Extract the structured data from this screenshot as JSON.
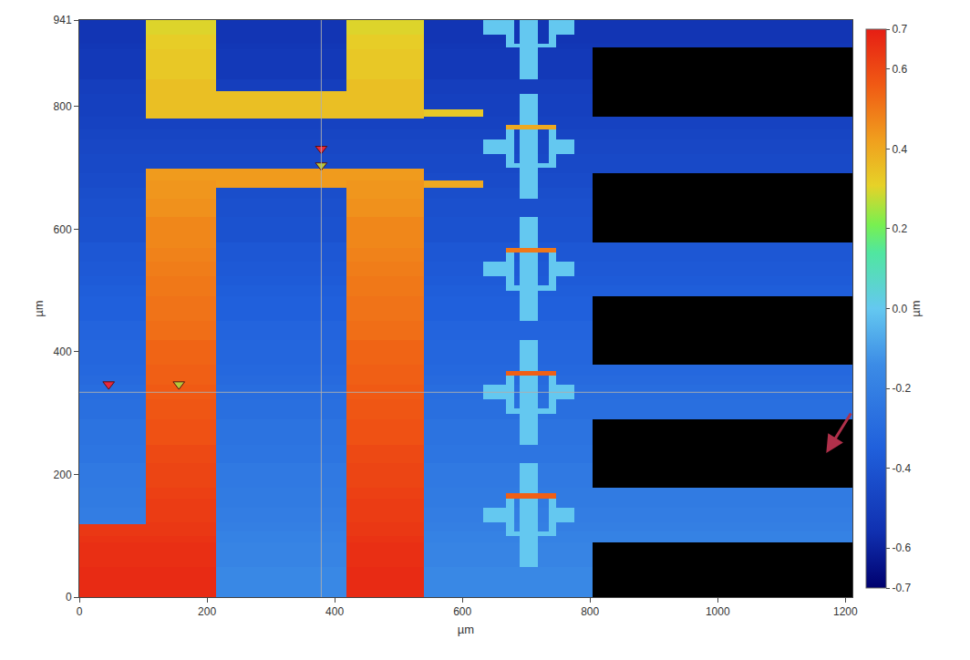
{
  "chart_data": {
    "type": "heatmap",
    "x_label": "µm",
    "y_label": "µm",
    "x": [
      0,
      104,
      214,
      419,
      540,
      633,
      669,
      681,
      690,
      719,
      735,
      747,
      776,
      804,
      1211
    ],
    "y": [
      0,
      49,
      89,
      99,
      107,
      119,
      122,
      146,
      161,
      169,
      178,
      219,
      249,
      290,
      299,
      307,
      322,
      346,
      361,
      369,
      379,
      419,
      450,
      490,
      500,
      508,
      523,
      547,
      562,
      570,
      579,
      620,
      650,
      668,
      680,
      691,
      698,
      700,
      708,
      723,
      747,
      762,
      770,
      780,
      783,
      795,
      820,
      825,
      844,
      894,
      896,
      902,
      917,
      941
    ],
    "z": [
      [
        0.67,
        0.67,
        -0.16,
        0.67,
        -0.16,
        -0.16,
        -0.16,
        -0.16,
        -0.16,
        -0.16,
        -0.16,
        -0.16,
        -0.16,
        null
      ],
      [
        0.66,
        0.66,
        -0.18,
        0.66,
        -0.18,
        -0.18,
        -0.18,
        -0.18,
        0.0,
        -0.18,
        -0.18,
        -0.18,
        -0.18,
        null
      ],
      [
        0.65,
        0.65,
        -0.19,
        0.65,
        -0.19,
        -0.19,
        -0.19,
        -0.19,
        0.0,
        -0.19,
        -0.19,
        -0.19,
        -0.19,
        -0.19
      ],
      [
        0.64,
        0.64,
        -0.19,
        0.64,
        -0.19,
        -0.19,
        0.0,
        0.0,
        0.0,
        0.0,
        0.0,
        -0.19,
        -0.19,
        -0.19
      ],
      [
        0.64,
        0.64,
        -0.2,
        0.64,
        -0.2,
        -0.2,
        0.0,
        -0.2,
        0.0,
        -0.2,
        0.0,
        -0.2,
        -0.2,
        -0.2
      ],
      [
        -0.2,
        0.64,
        -0.2,
        0.64,
        -0.2,
        -0.2,
        0.0,
        -0.2,
        0.0,
        -0.2,
        0.0,
        -0.2,
        -0.2,
        -0.2
      ],
      [
        -0.21,
        0.63,
        -0.21,
        0.63,
        -0.21,
        0.0,
        0.0,
        -0.21,
        0.0,
        -0.21,
        0.0,
        0.0,
        -0.21,
        -0.21
      ],
      [
        -0.22,
        0.63,
        -0.22,
        0.63,
        -0.22,
        -0.22,
        0.0,
        -0.22,
        0.0,
        -0.22,
        0.0,
        -0.22,
        -0.22,
        -0.22
      ],
      [
        -0.22,
        0.62,
        -0.22,
        0.62,
        -0.22,
        -0.22,
        0.55,
        0.55,
        0.55,
        0.55,
        0.55,
        -0.22,
        -0.22,
        -0.22
      ],
      [
        -0.22,
        0.62,
        -0.22,
        0.62,
        -0.22,
        -0.22,
        -0.22,
        -0.22,
        0.0,
        -0.22,
        -0.22,
        -0.22,
        -0.22,
        -0.22
      ],
      [
        -0.23,
        0.61,
        -0.23,
        0.61,
        -0.23,
        -0.23,
        -0.23,
        -0.23,
        0.0,
        -0.23,
        -0.23,
        -0.23,
        -0.23,
        null
      ],
      [
        -0.25,
        0.6,
        -0.25,
        0.6,
        -0.25,
        -0.25,
        -0.25,
        -0.25,
        -0.25,
        -0.25,
        -0.25,
        -0.25,
        -0.25,
        null
      ],
      [
        -0.26,
        0.58,
        -0.26,
        0.58,
        -0.26,
        -0.26,
        -0.26,
        -0.26,
        0.0,
        -0.26,
        -0.26,
        -0.26,
        -0.26,
        null
      ],
      [
        -0.28,
        0.57,
        -0.28,
        0.57,
        -0.28,
        -0.28,
        -0.28,
        -0.28,
        0.0,
        -0.28,
        -0.28,
        -0.28,
        -0.28,
        -0.28
      ],
      [
        -0.28,
        0.57,
        -0.28,
        0.57,
        -0.28,
        -0.28,
        0.0,
        0.0,
        0.0,
        0.0,
        0.0,
        -0.28,
        -0.28,
        -0.28
      ],
      [
        -0.28,
        0.57,
        -0.28,
        0.57,
        -0.28,
        -0.28,
        0.0,
        -0.28,
        0.0,
        -0.28,
        0.0,
        -0.28,
        -0.28,
        -0.28
      ],
      [
        -0.29,
        0.56,
        -0.29,
        0.56,
        -0.29,
        0.0,
        0.0,
        -0.29,
        0.0,
        -0.29,
        0.0,
        0.0,
        -0.29,
        -0.29
      ],
      [
        -0.3,
        0.55,
        -0.3,
        0.55,
        -0.3,
        -0.3,
        0.0,
        -0.3,
        0.0,
        -0.3,
        0.0,
        -0.3,
        -0.3,
        -0.3
      ],
      [
        -0.31,
        0.55,
        -0.31,
        0.55,
        -0.31,
        -0.31,
        0.55,
        0.55,
        0.55,
        0.55,
        0.55,
        -0.31,
        -0.31,
        -0.31
      ],
      [
        -0.31,
        0.55,
        -0.31,
        0.55,
        -0.31,
        -0.31,
        -0.31,
        -0.31,
        0.0,
        -0.31,
        -0.31,
        -0.31,
        -0.31,
        -0.31
      ],
      [
        -0.32,
        0.54,
        -0.32,
        0.54,
        -0.32,
        -0.32,
        -0.32,
        -0.32,
        0.0,
        -0.32,
        -0.32,
        -0.32,
        -0.32,
        null
      ],
      [
        -0.33,
        0.52,
        -0.33,
        0.52,
        -0.33,
        -0.33,
        -0.33,
        -0.33,
        -0.33,
        -0.33,
        -0.33,
        -0.33,
        -0.33,
        null
      ],
      [
        -0.35,
        0.51,
        -0.35,
        0.51,
        -0.35,
        -0.35,
        -0.35,
        -0.35,
        0.0,
        -0.35,
        -0.35,
        -0.35,
        -0.35,
        null
      ],
      [
        -0.36,
        0.5,
        -0.36,
        0.5,
        -0.36,
        -0.36,
        -0.36,
        -0.36,
        0.0,
        -0.36,
        -0.36,
        -0.36,
        -0.36,
        -0.36
      ],
      [
        -0.36,
        0.5,
        -0.36,
        0.5,
        -0.36,
        -0.36,
        0.0,
        0.0,
        0.0,
        0.0,
        0.0,
        -0.36,
        -0.36,
        -0.36
      ],
      [
        -0.37,
        0.5,
        -0.37,
        0.5,
        -0.37,
        -0.37,
        0.0,
        -0.37,
        0.0,
        -0.37,
        0.0,
        -0.37,
        -0.37,
        -0.37
      ],
      [
        -0.38,
        0.49,
        -0.38,
        0.49,
        -0.38,
        0.0,
        0.0,
        -0.38,
        0.0,
        -0.38,
        0.0,
        0.0,
        -0.38,
        -0.38
      ],
      [
        -0.39,
        0.48,
        -0.39,
        0.48,
        -0.39,
        -0.39,
        0.0,
        -0.39,
        0.0,
        -0.39,
        0.0,
        -0.39,
        -0.39,
        -0.39
      ],
      [
        -0.39,
        0.48,
        -0.39,
        0.48,
        -0.39,
        -0.39,
        0.5,
        0.5,
        0.5,
        0.5,
        0.5,
        -0.39,
        -0.39,
        -0.39
      ],
      [
        -0.39,
        0.47,
        -0.39,
        0.47,
        -0.39,
        -0.39,
        -0.39,
        -0.39,
        0.0,
        -0.39,
        -0.39,
        -0.39,
        -0.39,
        -0.39
      ],
      [
        -0.41,
        0.47,
        -0.41,
        0.47,
        -0.41,
        -0.41,
        -0.41,
        -0.41,
        0.0,
        -0.41,
        -0.41,
        -0.41,
        -0.41,
        null
      ],
      [
        -0.42,
        0.45,
        -0.42,
        0.45,
        -0.42,
        -0.42,
        -0.42,
        -0.42,
        -0.42,
        -0.42,
        -0.42,
        -0.42,
        -0.42,
        null
      ],
      [
        -0.43,
        0.44,
        -0.43,
        0.44,
        -0.43,
        -0.43,
        -0.43,
        -0.43,
        0.0,
        -0.43,
        -0.43,
        -0.43,
        -0.43,
        null
      ],
      [
        -0.44,
        0.44,
        0.43,
        0.44,
        0.4,
        -0.44,
        -0.44,
        -0.44,
        0.0,
        -0.44,
        -0.44,
        -0.44,
        -0.44,
        null
      ],
      [
        -0.44,
        0.43,
        0.43,
        0.43,
        -0.44,
        -0.44,
        -0.44,
        -0.44,
        0.0,
        -0.44,
        -0.44,
        -0.44,
        -0.44,
        null
      ],
      [
        -0.45,
        0.43,
        0.43,
        0.43,
        -0.45,
        -0.45,
        -0.45,
        -0.45,
        0.0,
        -0.45,
        -0.45,
        -0.45,
        -0.45,
        -0.45
      ],
      [
        -0.45,
        -0.45,
        -0.45,
        -0.45,
        -0.45,
        -0.45,
        -0.45,
        -0.45,
        0.0,
        -0.45,
        -0.45,
        -0.45,
        -0.45,
        -0.45
      ],
      [
        -0.45,
        -0.45,
        -0.45,
        -0.45,
        -0.45,
        -0.45,
        0.0,
        0.0,
        0.0,
        0.0,
        0.0,
        -0.45,
        -0.45,
        -0.45
      ],
      [
        -0.45,
        -0.45,
        -0.45,
        -0.45,
        -0.45,
        -0.45,
        0.0,
        -0.45,
        0.0,
        -0.45,
        0.0,
        -0.45,
        -0.45,
        -0.45
      ],
      [
        -0.46,
        -0.46,
        -0.46,
        -0.46,
        -0.46,
        0.0,
        0.0,
        -0.46,
        0.0,
        -0.46,
        0.0,
        0.0,
        -0.46,
        -0.46
      ],
      [
        -0.47,
        -0.47,
        -0.47,
        -0.47,
        -0.47,
        -0.47,
        0.0,
        -0.47,
        0.0,
        -0.47,
        0.0,
        -0.47,
        -0.47,
        -0.47
      ],
      [
        -0.48,
        -0.48,
        -0.48,
        -0.48,
        -0.48,
        -0.48,
        0.4,
        0.4,
        0.4,
        0.4,
        0.4,
        -0.48,
        -0.48,
        -0.48
      ],
      [
        -0.48,
        -0.48,
        -0.48,
        -0.48,
        -0.48,
        -0.48,
        -0.48,
        -0.48,
        0.0,
        -0.48,
        -0.48,
        -0.48,
        -0.48,
        -0.48
      ],
      [
        -0.48,
        0.35,
        0.35,
        0.35,
        -0.48,
        -0.48,
        -0.48,
        -0.48,
        0.0,
        -0.48,
        -0.48,
        -0.48,
        -0.48,
        -0.48
      ],
      [
        -0.49,
        0.35,
        0.35,
        0.35,
        0.33,
        -0.49,
        -0.49,
        -0.49,
        0.0,
        -0.49,
        -0.49,
        -0.49,
        -0.49,
        null
      ],
      [
        -0.49,
        0.35,
        0.35,
        0.35,
        -0.49,
        -0.49,
        -0.49,
        -0.49,
        0.0,
        -0.49,
        -0.49,
        -0.49,
        -0.49,
        null
      ],
      [
        -0.5,
        0.35,
        0.35,
        0.35,
        -0.5,
        -0.5,
        -0.5,
        -0.5,
        -0.5,
        -0.5,
        -0.5,
        -0.5,
        -0.5,
        null
      ],
      [
        -0.5,
        0.35,
        -0.5,
        0.35,
        -0.5,
        -0.5,
        -0.5,
        -0.5,
        -0.5,
        -0.5,
        -0.5,
        -0.5,
        -0.5,
        null
      ],
      [
        -0.52,
        0.33,
        -0.52,
        0.33,
        -0.52,
        -0.52,
        -0.52,
        -0.52,
        0.0,
        -0.52,
        -0.52,
        -0.52,
        -0.52,
        null
      ],
      [
        -0.53,
        0.32,
        -0.53,
        0.32,
        -0.53,
        -0.53,
        -0.53,
        -0.53,
        0.0,
        -0.53,
        -0.53,
        -0.53,
        -0.53,
        null
      ],
      [
        -0.53,
        0.32,
        -0.53,
        0.32,
        -0.53,
        -0.53,
        0.0,
        0.0,
        0.0,
        0.0,
        0.0,
        -0.53,
        -0.53,
        -0.53
      ],
      [
        -0.54,
        0.32,
        -0.54,
        0.32,
        -0.54,
        -0.54,
        0.0,
        -0.54,
        0.0,
        -0.54,
        0.0,
        -0.54,
        -0.54,
        -0.54
      ],
      [
        -0.54,
        0.3,
        -0.54,
        0.3,
        -0.54,
        0.0,
        0.0,
        -0.54,
        0.0,
        -0.54,
        0.0,
        0.0,
        -0.54,
        -0.54
      ]
    ],
    "xlim": [
      0,
      1211
    ],
    "xticks": [
      0,
      200,
      400,
      600,
      800,
      1000,
      1200
    ],
    "ylim": [
      0,
      941
    ],
    "yticks": [
      0,
      200,
      400,
      600,
      800,
      941
    ],
    "colorbar": {
      "title": "µm",
      "range": [
        -0.7,
        0.7
      ],
      "ticks": [
        -0.7,
        -0.6,
        -0.4,
        -0.2,
        {
          "value": 0,
          "label": "0.0"
        },
        0.2,
        0.4,
        0.6,
        0.7
      ]
    },
    "cursors": {
      "x": 379,
      "y": 334,
      "marker": "triangle-down",
      "points": [
        {
          "x": 46,
          "y": 347,
          "color": "#e8283c"
        },
        {
          "x": 156,
          "y": 347,
          "color": "#b4c83c"
        },
        {
          "x": 379,
          "y": 731,
          "color": "#e8283c"
        },
        {
          "x": 379,
          "y": 704,
          "color": "#b4c83c"
        }
      ]
    }
  }
}
